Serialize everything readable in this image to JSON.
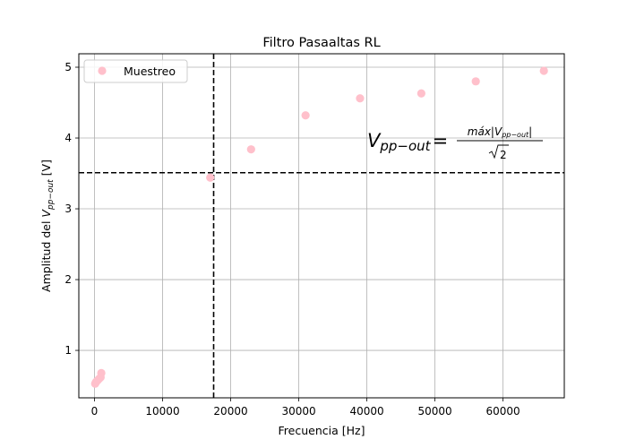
{
  "chart_data": {
    "type": "scatter",
    "title": "Filtro Pasaaltas RL",
    "xlabel": "Frecuencia [Hz]",
    "ylabel": {
      "prefix": "Amplitud del ",
      "var": "V",
      "sub": "pp−out",
      "suffix": " [V]"
    },
    "xlim": [
      -2300,
      69000
    ],
    "ylim": [
      0.33,
      5.19
    ],
    "xticks": [
      0,
      10000,
      20000,
      30000,
      40000,
      50000,
      60000
    ],
    "yticks": [
      1,
      2,
      3,
      4,
      5
    ],
    "grid": true,
    "legend": {
      "position": "top-left",
      "label": "Muestreo"
    },
    "series": [
      {
        "name": "Muestreo",
        "color": "#ffc0cb",
        "x": [
          100,
          200,
          300,
          500,
          700,
          900,
          1000,
          17000,
          23000,
          31000,
          39000,
          48000,
          56000,
          66000
        ],
        "y": [
          0.53,
          0.55,
          0.56,
          0.58,
          0.6,
          0.62,
          0.68,
          3.44,
          3.84,
          4.32,
          4.56,
          4.63,
          4.8,
          4.95
        ]
      }
    ],
    "reference_lines": [
      {
        "orientation": "vertical",
        "value": 17500,
        "style": "dashed",
        "color": "#000000"
      },
      {
        "orientation": "horizontal",
        "value": 3.51,
        "style": "dashed",
        "color": "#000000"
      }
    ],
    "annotation": {
      "lhs_var": "V",
      "lhs_sub": "pp−out",
      "equals": "=",
      "num_prefix": "máx|V",
      "num_sub": "pp−out",
      "num_suffix": "|",
      "den": "2",
      "anchor": {
        "x": 40000,
        "y": 3.9
      }
    }
  }
}
